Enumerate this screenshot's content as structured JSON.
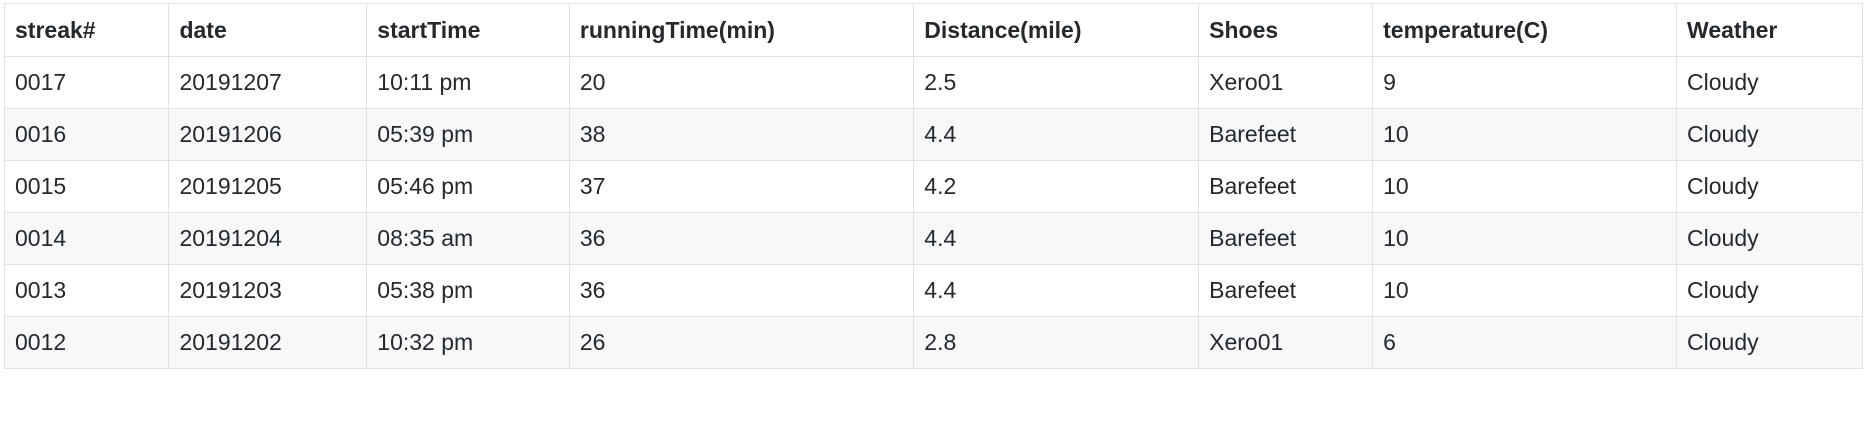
{
  "table": {
    "columns": [
      "streak#",
      "date",
      "startTime",
      "runningTime(min)",
      "Distance(mile)",
      "Shoes",
      "temperature(C)",
      "Weather"
    ],
    "rows": [
      [
        "0017",
        "20191207",
        "10:11 pm",
        "20",
        "2.5",
        "Xero01",
        "9",
        "Cloudy"
      ],
      [
        "0016",
        "20191206",
        "05:39 pm",
        "38",
        "4.4",
        "Barefeet",
        "10",
        "Cloudy"
      ],
      [
        "0015",
        "20191205",
        "05:46 pm",
        "37",
        "4.2",
        "Barefeet",
        "10",
        "Cloudy"
      ],
      [
        "0014",
        "20191204",
        "08:35 am",
        "36",
        "4.4",
        "Barefeet",
        "10",
        "Cloudy"
      ],
      [
        "0013",
        "20191203",
        "05:38 pm",
        "36",
        "4.4",
        "Barefeet",
        "10",
        "Cloudy"
      ],
      [
        "0012",
        "20191202",
        "10:32 pm",
        "26",
        "2.8",
        "Xero01",
        "6",
        "Cloudy"
      ]
    ]
  },
  "colors": {
    "border": "#dfe2e5",
    "stripe": "#f6f8fa",
    "text": "#24292e"
  }
}
